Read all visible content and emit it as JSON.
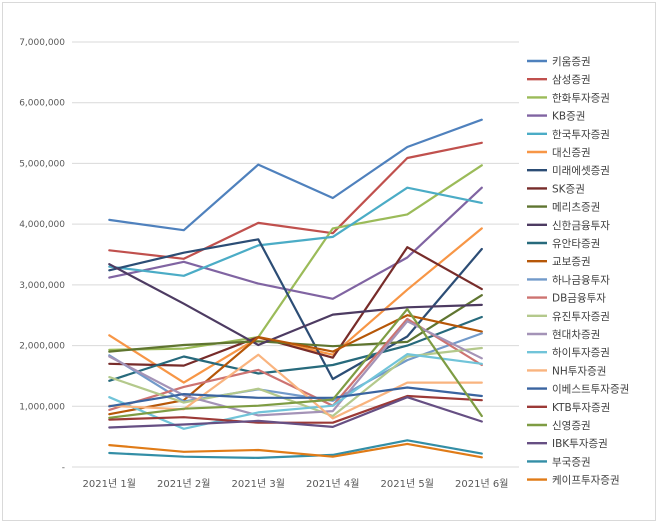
{
  "chart_data": {
    "type": "line",
    "title": "",
    "xlabel": "",
    "ylabel": "",
    "ylim": [
      0,
      7000000
    ],
    "grid": true,
    "legend_position": "right",
    "categories": [
      "2021년 1월",
      "2021년 2월",
      "2021년 3월",
      "2021년 4월",
      "2021년 5월",
      "2021년 6월"
    ],
    "y_ticks": [
      "-",
      "1,000,000",
      "2,000,000",
      "3,000,000",
      "4,000,000",
      "5,000,000",
      "6,000,000",
      "7,000,000"
    ],
    "series": [
      {
        "name": "키움증권",
        "color": "#4f81bd",
        "values": [
          4070000,
          3900000,
          4980000,
          4430000,
          5270000,
          5720000
        ]
      },
      {
        "name": "삼성증권",
        "color": "#c0504d",
        "values": [
          3570000,
          3430000,
          4020000,
          3850000,
          5090000,
          5340000
        ]
      },
      {
        "name": "한화투자증권",
        "color": "#9bbb59",
        "values": [
          1930000,
          1950000,
          2140000,
          3930000,
          4160000,
          4970000
        ]
      },
      {
        "name": "KB증권",
        "color": "#8064a2",
        "values": [
          3120000,
          3380000,
          3020000,
          2770000,
          3450000,
          4600000
        ]
      },
      {
        "name": "한국투자증권",
        "color": "#4bacc6",
        "values": [
          3300000,
          3150000,
          3650000,
          3790000,
          4600000,
          4350000
        ]
      },
      {
        "name": "대신증권",
        "color": "#f79646",
        "values": [
          2170000,
          1390000,
          2130000,
          1850000,
          2920000,
          3930000
        ]
      },
      {
        "name": "미래에셋증권",
        "color": "#2c4d75",
        "values": [
          3240000,
          3530000,
          3750000,
          1450000,
          2150000,
          3590000
        ]
      },
      {
        "name": "SK증권",
        "color": "#772c2a",
        "values": [
          1700000,
          1670000,
          2140000,
          1800000,
          3620000,
          2930000
        ]
      },
      {
        "name": "메리츠증권",
        "color": "#5f7530",
        "values": [
          1900000,
          2010000,
          2070000,
          1990000,
          2060000,
          2830000
        ]
      },
      {
        "name": "신한금융투자",
        "color": "#4d3b62",
        "values": [
          3340000,
          2690000,
          2010000,
          2510000,
          2630000,
          2670000
        ]
      },
      {
        "name": "유안타증권",
        "color": "#276a7c",
        "values": [
          1420000,
          1820000,
          1540000,
          1680000,
          2000000,
          2470000
        ]
      },
      {
        "name": "교보증권",
        "color": "#b65708",
        "values": [
          870000,
          1100000,
          2140000,
          1900000,
          2500000,
          2230000
        ]
      },
      {
        "name": "하나금융투자",
        "color": "#729aca",
        "values": [
          1840000,
          1080000,
          1280000,
          1090000,
          1760000,
          2200000
        ]
      },
      {
        "name": "DB금융투자",
        "color": "#cd7371",
        "values": [
          940000,
          1320000,
          1600000,
          1010000,
          2440000,
          1680000
        ]
      },
      {
        "name": "유진투자증권",
        "color": "#b4c98c",
        "values": [
          1480000,
          1060000,
          1290000,
          840000,
          1820000,
          1960000
        ]
      },
      {
        "name": "현대차증권",
        "color": "#a493b7",
        "values": [
          1820000,
          1180000,
          850000,
          920000,
          2400000,
          1790000
        ]
      },
      {
        "name": "하이투자증권",
        "color": "#71c4d9",
        "values": [
          1150000,
          630000,
          900000,
          1010000,
          1860000,
          1700000
        ]
      },
      {
        "name": "NH투자증권",
        "color": "#f9b47f",
        "values": [
          1010000,
          950000,
          1850000,
          800000,
          1390000,
          1390000
        ]
      },
      {
        "name": "이베스트투자증권",
        "color": "#3a64a0",
        "values": [
          1000000,
          1200000,
          1140000,
          1140000,
          1310000,
          1170000
        ]
      },
      {
        "name": "KTB투자증권",
        "color": "#9c3a37",
        "values": [
          780000,
          820000,
          730000,
          730000,
          1170000,
          1100000
        ]
      },
      {
        "name": "신영증권",
        "color": "#7e9c43",
        "values": [
          810000,
          960000,
          1010000,
          1110000,
          2600000,
          840000
        ]
      },
      {
        "name": "IBK투자증권",
        "color": "#664f83",
        "values": [
          650000,
          700000,
          760000,
          660000,
          1150000,
          750000
        ]
      },
      {
        "name": "부국증권",
        "color": "#338ea6",
        "values": [
          230000,
          170000,
          150000,
          200000,
          440000,
          220000
        ]
      },
      {
        "name": "케이프투자증권",
        "color": "#e07b17",
        "values": [
          360000,
          250000,
          280000,
          170000,
          380000,
          160000
        ]
      }
    ]
  }
}
